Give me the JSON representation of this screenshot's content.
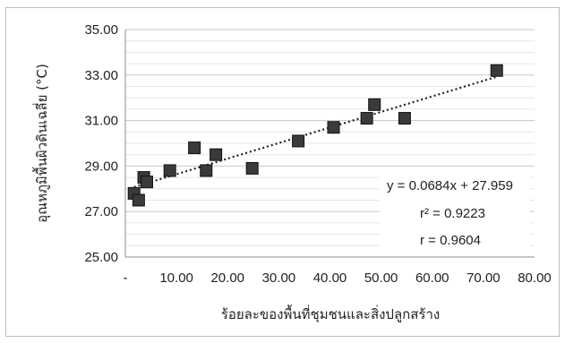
{
  "chart_data": {
    "type": "scatter",
    "title": "",
    "xlabel": "ร้อยละของพื้นที่ชุมชนและสิ่งปลูกสร้าง",
    "ylabel": "อุณหภูมิพื้นผิวดินเฉลี่ย (°C)",
    "xlim": [
      0,
      80
    ],
    "ylim": [
      25,
      35
    ],
    "x_ticks": [
      {
        "value": 0,
        "label": "-"
      },
      {
        "value": 10,
        "label": "10.00"
      },
      {
        "value": 20,
        "label": "20.00"
      },
      {
        "value": 30,
        "label": "30.00"
      },
      {
        "value": 40,
        "label": "40.00"
      },
      {
        "value": 50,
        "label": "50.00"
      },
      {
        "value": 60,
        "label": "60.00"
      },
      {
        "value": 70,
        "label": "70.00"
      },
      {
        "value": 80,
        "label": "80.00"
      }
    ],
    "y_ticks": [
      {
        "value": 25,
        "label": "25.00"
      },
      {
        "value": 27,
        "label": "27.00"
      },
      {
        "value": 29,
        "label": "29.00"
      },
      {
        "value": 31,
        "label": "31.00"
      },
      {
        "value": 33,
        "label": "33.00"
      },
      {
        "value": 35,
        "label": "35.00"
      }
    ],
    "grid": true,
    "points": [
      {
        "x": 1.7,
        "y": 27.8
      },
      {
        "x": 2.6,
        "y": 27.5
      },
      {
        "x": 3.6,
        "y": 28.5
      },
      {
        "x": 4.2,
        "y": 28.3
      },
      {
        "x": 8.7,
        "y": 28.8
      },
      {
        "x": 13.5,
        "y": 29.8
      },
      {
        "x": 15.8,
        "y": 28.8
      },
      {
        "x": 17.7,
        "y": 29.5
      },
      {
        "x": 24.8,
        "y": 28.9
      },
      {
        "x": 33.8,
        "y": 30.1
      },
      {
        "x": 40.7,
        "y": 30.7
      },
      {
        "x": 47.2,
        "y": 31.1
      },
      {
        "x": 48.7,
        "y": 31.7
      },
      {
        "x": 54.6,
        "y": 31.1
      },
      {
        "x": 72.6,
        "y": 33.2
      }
    ],
    "trendline": {
      "slope": 0.0684,
      "intercept": 27.959,
      "x_start": 1.7,
      "x_end": 72.6
    },
    "annotations": {
      "equation": "y = 0.0684x + 27.959",
      "r_squared": "r² = 0.9223",
      "r": "r  = 0.9604"
    },
    "marker_color": "#3a3a3a",
    "trend_color": "#222222",
    "grid_color": "#d9d9d9"
  }
}
